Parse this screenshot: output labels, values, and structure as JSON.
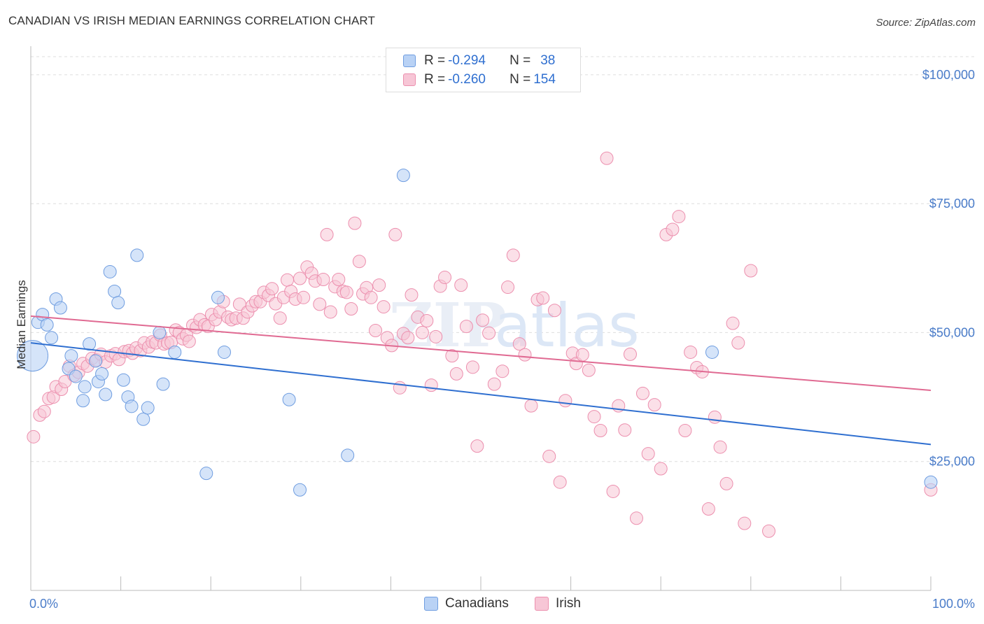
{
  "header": {
    "title": "CANADIAN VS IRISH MEDIAN EARNINGS CORRELATION CHART",
    "source": "Source: ZipAtlas.com"
  },
  "colors": {
    "canadians_fill": "#b9d2f5",
    "canadians_stroke": "#6f9de0",
    "canadians_line": "#2f6fd0",
    "irish_fill": "#f7c6d6",
    "irish_stroke": "#ec8fae",
    "irish_line": "#e06a92",
    "axis_text": "#4a7cc9",
    "grid": "#dddddd"
  },
  "legend": {
    "rows": [
      {
        "r_label": "R = ",
        "r_value": "-0.294",
        "n_label": "N = ",
        "n_value": "38"
      },
      {
        "r_label": "R = ",
        "r_value": "-0.260",
        "n_label": "N = ",
        "n_value": "154"
      }
    ]
  },
  "bottom_legend": {
    "items": [
      "Canadians",
      "Irish"
    ]
  },
  "chart_data": {
    "type": "scatter",
    "title": "CANADIAN VS IRISH MEDIAN EARNINGS CORRELATION CHART",
    "xlabel": "",
    "ylabel": "Median Earnings",
    "xlim": [
      0,
      100
    ],
    "ylim": [
      0,
      105000
    ],
    "x_tick_labels": [
      "0.0%",
      "100.0%"
    ],
    "y_ticks": [
      25000,
      50000,
      75000,
      100000
    ],
    "y_tick_labels": [
      "$25,000",
      "$50,000",
      "$75,000",
      "$100,000"
    ],
    "grid": "horizontal dashed",
    "legend_position": "top-center",
    "series": [
      {
        "name": "Canadians",
        "r": -0.294,
        "n": 38,
        "trend": {
          "x": [
            0,
            100
          ],
          "y": [
            48000,
            28300
          ]
        },
        "points": [
          [
            0.2,
            45500
          ],
          [
            0.8,
            52000
          ],
          [
            1.3,
            53500
          ],
          [
            1.8,
            51500
          ],
          [
            2.3,
            49000
          ],
          [
            2.8,
            56500
          ],
          [
            3.3,
            54800
          ],
          [
            4.2,
            43000
          ],
          [
            4.5,
            45500
          ],
          [
            5.0,
            41500
          ],
          [
            5.8,
            36800
          ],
          [
            6.0,
            39500
          ],
          [
            6.5,
            47800
          ],
          [
            7.2,
            44500
          ],
          [
            7.5,
            40500
          ],
          [
            7.9,
            42000
          ],
          [
            8.3,
            38000
          ],
          [
            8.8,
            61800
          ],
          [
            9.3,
            58000
          ],
          [
            9.7,
            55800
          ],
          [
            10.3,
            40800
          ],
          [
            10.8,
            37500
          ],
          [
            11.2,
            35700
          ],
          [
            11.8,
            65000
          ],
          [
            12.5,
            33200
          ],
          [
            13.0,
            35400
          ],
          [
            14.3,
            50000
          ],
          [
            14.7,
            40000
          ],
          [
            16.0,
            46200
          ],
          [
            19.5,
            22700
          ],
          [
            20.8,
            56800
          ],
          [
            21.5,
            46200
          ],
          [
            28.7,
            37000
          ],
          [
            29.9,
            19500
          ],
          [
            35.2,
            26200
          ],
          [
            41.4,
            80500
          ],
          [
            75.7,
            46200
          ],
          [
            100.0,
            21000
          ]
        ]
      },
      {
        "name": "Irish",
        "r": -0.26,
        "n": 154,
        "trend": {
          "x": [
            0,
            100
          ],
          "y": [
            53200,
            38800
          ]
        },
        "points": [
          [
            0.3,
            29800
          ],
          [
            1.0,
            34000
          ],
          [
            1.5,
            34700
          ],
          [
            2.0,
            37200
          ],
          [
            2.5,
            37500
          ],
          [
            2.8,
            39500
          ],
          [
            3.4,
            39000
          ],
          [
            3.8,
            40500
          ],
          [
            4.3,
            43500
          ],
          [
            4.8,
            41700
          ],
          [
            5.3,
            42300
          ],
          [
            5.8,
            44000
          ],
          [
            6.3,
            43500
          ],
          [
            6.8,
            45000
          ],
          [
            7.3,
            44700
          ],
          [
            7.8,
            45800
          ],
          [
            8.3,
            44300
          ],
          [
            8.9,
            45500
          ],
          [
            9.4,
            45900
          ],
          [
            9.8,
            44800
          ],
          [
            10.4,
            46300
          ],
          [
            10.9,
            46500
          ],
          [
            11.3,
            46000
          ],
          [
            11.7,
            47000
          ],
          [
            12.2,
            46500
          ],
          [
            12.6,
            48000
          ],
          [
            13.1,
            47200
          ],
          [
            13.5,
            48200
          ],
          [
            13.9,
            48000
          ],
          [
            14.4,
            49500
          ],
          [
            14.8,
            47800
          ],
          [
            15.2,
            48000
          ],
          [
            15.6,
            48100
          ],
          [
            16.1,
            50500
          ],
          [
            16.5,
            50000
          ],
          [
            16.9,
            48800
          ],
          [
            17.3,
            49500
          ],
          [
            17.6,
            48300
          ],
          [
            18.0,
            51400
          ],
          [
            18.4,
            51000
          ],
          [
            18.8,
            52500
          ],
          [
            19.3,
            51500
          ],
          [
            19.7,
            51200
          ],
          [
            20.1,
            53500
          ],
          [
            20.5,
            52500
          ],
          [
            21.0,
            54000
          ],
          [
            21.4,
            56000
          ],
          [
            21.9,
            53000
          ],
          [
            22.3,
            52500
          ],
          [
            22.8,
            52800
          ],
          [
            23.2,
            55500
          ],
          [
            23.6,
            52800
          ],
          [
            24.1,
            54000
          ],
          [
            24.6,
            55200
          ],
          [
            25.0,
            56000
          ],
          [
            25.5,
            56000
          ],
          [
            25.9,
            57800
          ],
          [
            26.4,
            57200
          ],
          [
            26.8,
            58500
          ],
          [
            27.2,
            55600
          ],
          [
            27.7,
            52800
          ],
          [
            28.1,
            56800
          ],
          [
            28.5,
            60200
          ],
          [
            28.9,
            58000
          ],
          [
            29.4,
            56500
          ],
          [
            29.9,
            60500
          ],
          [
            30.3,
            56800
          ],
          [
            30.7,
            62700
          ],
          [
            31.2,
            61500
          ],
          [
            31.6,
            60000
          ],
          [
            32.1,
            55500
          ],
          [
            32.5,
            60300
          ],
          [
            32.9,
            69000
          ],
          [
            33.3,
            54000
          ],
          [
            33.8,
            58900
          ],
          [
            34.2,
            60300
          ],
          [
            34.7,
            58000
          ],
          [
            35.1,
            57800
          ],
          [
            35.6,
            54600
          ],
          [
            36.0,
            71200
          ],
          [
            36.5,
            63800
          ],
          [
            36.9,
            57500
          ],
          [
            37.3,
            58700
          ],
          [
            37.8,
            56800
          ],
          [
            38.3,
            50400
          ],
          [
            38.7,
            59200
          ],
          [
            39.2,
            55000
          ],
          [
            39.6,
            49000
          ],
          [
            40.1,
            47500
          ],
          [
            40.5,
            69000
          ],
          [
            41.0,
            39300
          ],
          [
            41.4,
            49800
          ],
          [
            41.9,
            49000
          ],
          [
            42.3,
            57300
          ],
          [
            43.0,
            53000
          ],
          [
            43.5,
            50000
          ],
          [
            44.0,
            52300
          ],
          [
            44.5,
            39800
          ],
          [
            45.0,
            49200
          ],
          [
            45.5,
            59000
          ],
          [
            46.0,
            60700
          ],
          [
            46.8,
            45500
          ],
          [
            47.3,
            42000
          ],
          [
            47.8,
            59200
          ],
          [
            48.4,
            51200
          ],
          [
            49.1,
            43300
          ],
          [
            49.6,
            28000
          ],
          [
            50.2,
            52400
          ],
          [
            50.9,
            49900
          ],
          [
            51.5,
            40000
          ],
          [
            52.4,
            42500
          ],
          [
            53.0,
            58800
          ],
          [
            53.6,
            65000
          ],
          [
            54.3,
            47800
          ],
          [
            54.9,
            45700
          ],
          [
            55.6,
            35800
          ],
          [
            56.3,
            56400
          ],
          [
            56.9,
            56700
          ],
          [
            57.6,
            26000
          ],
          [
            58.2,
            54300
          ],
          [
            58.8,
            21000
          ],
          [
            59.4,
            36800
          ],
          [
            60.2,
            46000
          ],
          [
            60.6,
            44000
          ],
          [
            61.3,
            45700
          ],
          [
            62.0,
            42700
          ],
          [
            62.6,
            33700
          ],
          [
            63.3,
            31000
          ],
          [
            64.0,
            83800
          ],
          [
            64.7,
            19200
          ],
          [
            65.3,
            35800
          ],
          [
            66.0,
            31100
          ],
          [
            66.6,
            45800
          ],
          [
            67.3,
            14000
          ],
          [
            68.0,
            38200
          ],
          [
            68.6,
            26500
          ],
          [
            69.3,
            36000
          ],
          [
            70.0,
            23600
          ],
          [
            70.6,
            69000
          ],
          [
            71.3,
            70000
          ],
          [
            72.0,
            72500
          ],
          [
            72.7,
            31000
          ],
          [
            73.3,
            46200
          ],
          [
            74.0,
            43200
          ],
          [
            74.6,
            42400
          ],
          [
            75.3,
            15800
          ],
          [
            76.0,
            33600
          ],
          [
            76.6,
            27800
          ],
          [
            77.3,
            20700
          ],
          [
            78.0,
            51800
          ],
          [
            78.6,
            48000
          ],
          [
            79.3,
            13000
          ],
          [
            80.0,
            62000
          ],
          [
            82.0,
            11500
          ],
          [
            100.0,
            19500
          ]
        ]
      }
    ]
  }
}
